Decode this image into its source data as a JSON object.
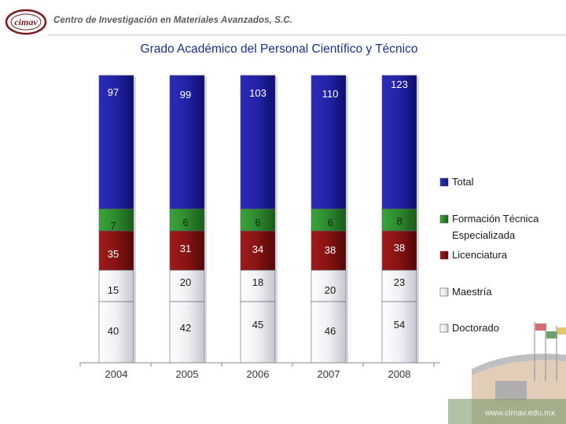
{
  "header": {
    "logo_text": "cimav",
    "org_name": "Centro de Investigación en Materiales Avanzados, S.C."
  },
  "footer": {
    "url": "www.cimav.edu.mx"
  },
  "chart_data": {
    "type": "bar",
    "stacked": true,
    "title": "Grado Académico del Personal Científico y Técnico",
    "categories": [
      "2004",
      "2005",
      "2006",
      "2007",
      "2008"
    ],
    "series": [
      {
        "name": "Doctorado",
        "color": "#e8e8ee",
        "values": [
          40,
          42,
          45,
          46,
          54
        ]
      },
      {
        "name": "Maestría",
        "color": "#e8e8ee",
        "values": [
          15,
          20,
          18,
          20,
          23
        ]
      },
      {
        "name": "Licenciatura",
        "color": "#8a1414",
        "values": [
          35,
          31,
          34,
          38,
          38
        ]
      },
      {
        "name": "Formación Técnica Especializada",
        "color": "#2e8b2e",
        "values": [
          7,
          6,
          6,
          6,
          8
        ]
      },
      {
        "name": "Total",
        "color": "#1a1a9c",
        "values": [
          97,
          99,
          103,
          110,
          123
        ]
      }
    ],
    "legend": [
      "Total",
      "Formación Técnica Especializada",
      "Licenciatura",
      "Maestría",
      "Doctorado"
    ],
    "legend_position": "right",
    "grid": false
  }
}
